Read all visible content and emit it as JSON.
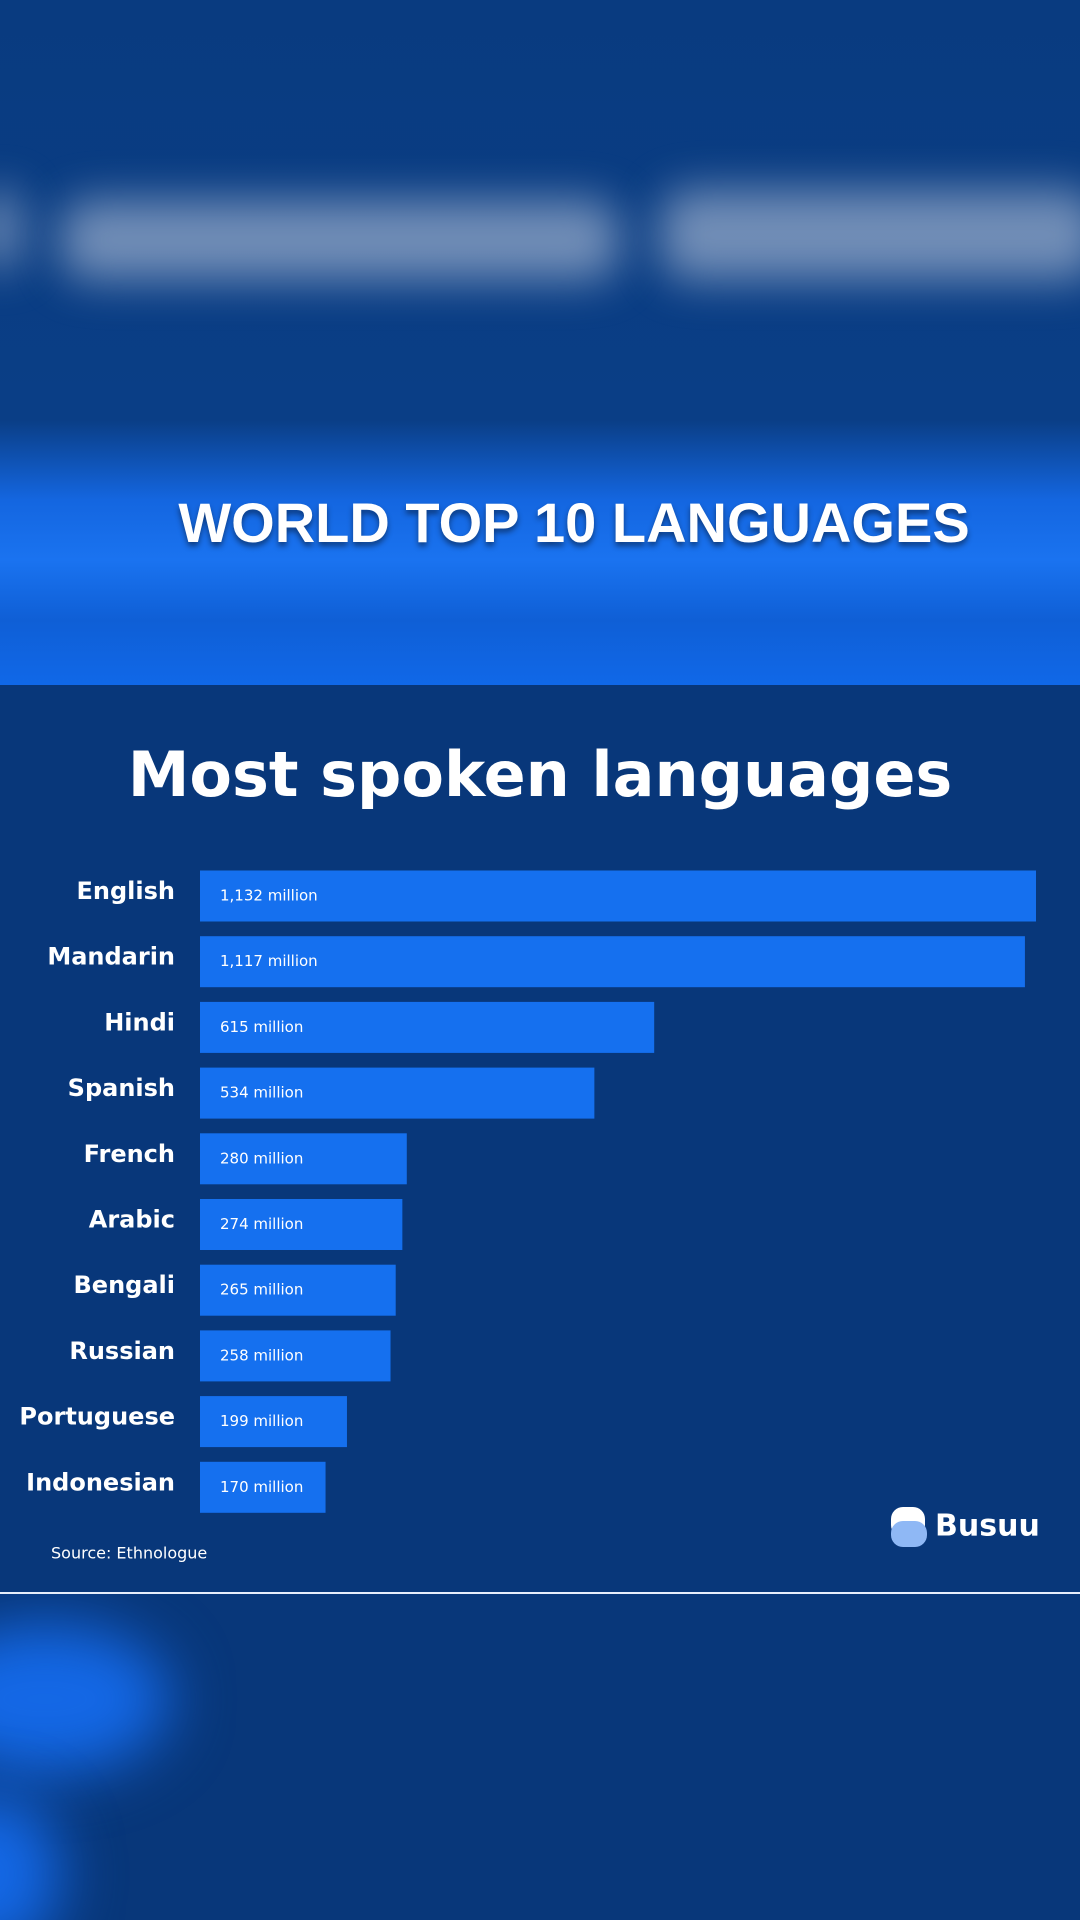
{
  "banner": {
    "title": "WORLD TOP 10 LANGUAGES"
  },
  "chart_data": {
    "type": "bar",
    "orientation": "horizontal",
    "title": "Most spoken languages",
    "categories": [
      "English",
      "Mandarin",
      "Hindi",
      "Spanish",
      "French",
      "Arabic",
      "Bengali",
      "Russian",
      "Portuguese",
      "Indonesian"
    ],
    "values": [
      1132,
      1117,
      615,
      534,
      280,
      274,
      265,
      258,
      199,
      170
    ],
    "value_labels": [
      "1,132 million",
      "1,117 million",
      "615 million",
      "534 million",
      "280 million",
      "274 million",
      "265 million",
      "258 million",
      "199 million",
      "170 million"
    ],
    "color": "#1570ef",
    "source": "Source: Ethnologue",
    "brand": "Busuu"
  }
}
